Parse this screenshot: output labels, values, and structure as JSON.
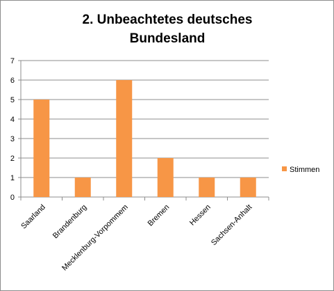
{
  "chart_data": {
    "type": "bar",
    "title_lines": [
      "2. Unbeachtetes deutsches",
      "Bundesland"
    ],
    "categories": [
      "Saarland",
      "Brandenburg",
      "Mecklenburg-Vorpommem",
      "Bremen",
      "Hessen",
      "Sachsen-Anhalt"
    ],
    "series": [
      {
        "name": "Stimmen",
        "values": [
          5,
          1,
          6,
          2,
          1,
          1
        ],
        "color": "#f79646"
      }
    ],
    "ylim": [
      0,
      7
    ],
    "yticks": [
      0,
      1,
      2,
      3,
      4,
      5,
      6,
      7
    ],
    "grid": true,
    "legend_position": "right"
  }
}
